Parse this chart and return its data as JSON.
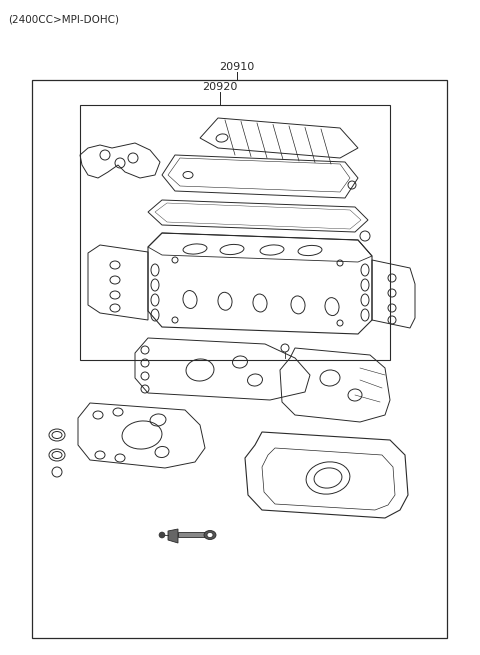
{
  "title_text": "(2400CC>MPI-DOHC)",
  "label_20910": "20910",
  "label_20920": "20920",
  "bg_color": "#ffffff",
  "line_color": "#2a2a2a",
  "text_color": "#2a2a2a",
  "fig_width": 4.8,
  "fig_height": 6.55,
  "dpi": 100
}
